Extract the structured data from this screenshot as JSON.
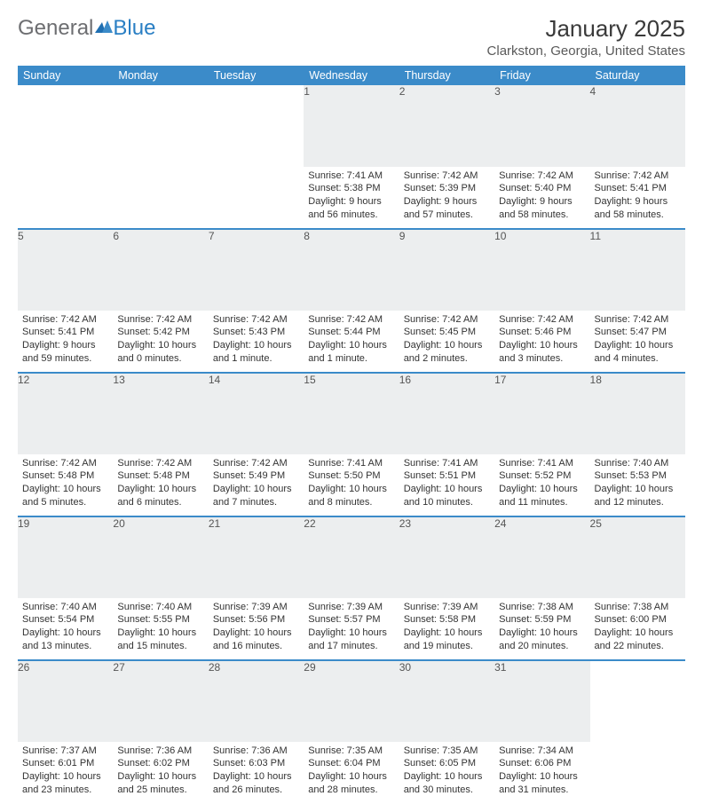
{
  "brand": {
    "part1": "General",
    "part2": "Blue"
  },
  "title": "January 2025",
  "location": "Clarkston, Georgia, United States",
  "colors": {
    "header_bg": "#3b8bc9",
    "header_text": "#ffffff",
    "daynum_bg": "#eceeef",
    "border": "#3b8bc9",
    "logo_gray": "#6d6e71",
    "logo_blue": "#2a7fc4"
  },
  "day_headers": [
    "Sunday",
    "Monday",
    "Tuesday",
    "Wednesday",
    "Thursday",
    "Friday",
    "Saturday"
  ],
  "weeks": [
    [
      null,
      null,
      null,
      {
        "n": "1",
        "sr": "7:41 AM",
        "ss": "5:38 PM",
        "dl": "9 hours and 56 minutes."
      },
      {
        "n": "2",
        "sr": "7:42 AM",
        "ss": "5:39 PM",
        "dl": "9 hours and 57 minutes."
      },
      {
        "n": "3",
        "sr": "7:42 AM",
        "ss": "5:40 PM",
        "dl": "9 hours and 58 minutes."
      },
      {
        "n": "4",
        "sr": "7:42 AM",
        "ss": "5:41 PM",
        "dl": "9 hours and 58 minutes."
      }
    ],
    [
      {
        "n": "5",
        "sr": "7:42 AM",
        "ss": "5:41 PM",
        "dl": "9 hours and 59 minutes."
      },
      {
        "n": "6",
        "sr": "7:42 AM",
        "ss": "5:42 PM",
        "dl": "10 hours and 0 minutes."
      },
      {
        "n": "7",
        "sr": "7:42 AM",
        "ss": "5:43 PM",
        "dl": "10 hours and 1 minute."
      },
      {
        "n": "8",
        "sr": "7:42 AM",
        "ss": "5:44 PM",
        "dl": "10 hours and 1 minute."
      },
      {
        "n": "9",
        "sr": "7:42 AM",
        "ss": "5:45 PM",
        "dl": "10 hours and 2 minutes."
      },
      {
        "n": "10",
        "sr": "7:42 AM",
        "ss": "5:46 PM",
        "dl": "10 hours and 3 minutes."
      },
      {
        "n": "11",
        "sr": "7:42 AM",
        "ss": "5:47 PM",
        "dl": "10 hours and 4 minutes."
      }
    ],
    [
      {
        "n": "12",
        "sr": "7:42 AM",
        "ss": "5:48 PM",
        "dl": "10 hours and 5 minutes."
      },
      {
        "n": "13",
        "sr": "7:42 AM",
        "ss": "5:48 PM",
        "dl": "10 hours and 6 minutes."
      },
      {
        "n": "14",
        "sr": "7:42 AM",
        "ss": "5:49 PM",
        "dl": "10 hours and 7 minutes."
      },
      {
        "n": "15",
        "sr": "7:41 AM",
        "ss": "5:50 PM",
        "dl": "10 hours and 8 minutes."
      },
      {
        "n": "16",
        "sr": "7:41 AM",
        "ss": "5:51 PM",
        "dl": "10 hours and 10 minutes."
      },
      {
        "n": "17",
        "sr": "7:41 AM",
        "ss": "5:52 PM",
        "dl": "10 hours and 11 minutes."
      },
      {
        "n": "18",
        "sr": "7:40 AM",
        "ss": "5:53 PM",
        "dl": "10 hours and 12 minutes."
      }
    ],
    [
      {
        "n": "19",
        "sr": "7:40 AM",
        "ss": "5:54 PM",
        "dl": "10 hours and 13 minutes."
      },
      {
        "n": "20",
        "sr": "7:40 AM",
        "ss": "5:55 PM",
        "dl": "10 hours and 15 minutes."
      },
      {
        "n": "21",
        "sr": "7:39 AM",
        "ss": "5:56 PM",
        "dl": "10 hours and 16 minutes."
      },
      {
        "n": "22",
        "sr": "7:39 AM",
        "ss": "5:57 PM",
        "dl": "10 hours and 17 minutes."
      },
      {
        "n": "23",
        "sr": "7:39 AM",
        "ss": "5:58 PM",
        "dl": "10 hours and 19 minutes."
      },
      {
        "n": "24",
        "sr": "7:38 AM",
        "ss": "5:59 PM",
        "dl": "10 hours and 20 minutes."
      },
      {
        "n": "25",
        "sr": "7:38 AM",
        "ss": "6:00 PM",
        "dl": "10 hours and 22 minutes."
      }
    ],
    [
      {
        "n": "26",
        "sr": "7:37 AM",
        "ss": "6:01 PM",
        "dl": "10 hours and 23 minutes."
      },
      {
        "n": "27",
        "sr": "7:36 AM",
        "ss": "6:02 PM",
        "dl": "10 hours and 25 minutes."
      },
      {
        "n": "28",
        "sr": "7:36 AM",
        "ss": "6:03 PM",
        "dl": "10 hours and 26 minutes."
      },
      {
        "n": "29",
        "sr": "7:35 AM",
        "ss": "6:04 PM",
        "dl": "10 hours and 28 minutes."
      },
      {
        "n": "30",
        "sr": "7:35 AM",
        "ss": "6:05 PM",
        "dl": "10 hours and 30 minutes."
      },
      {
        "n": "31",
        "sr": "7:34 AM",
        "ss": "6:06 PM",
        "dl": "10 hours and 31 minutes."
      },
      null
    ]
  ],
  "labels": {
    "sunrise": "Sunrise:",
    "sunset": "Sunset:",
    "daylight": "Daylight:"
  }
}
